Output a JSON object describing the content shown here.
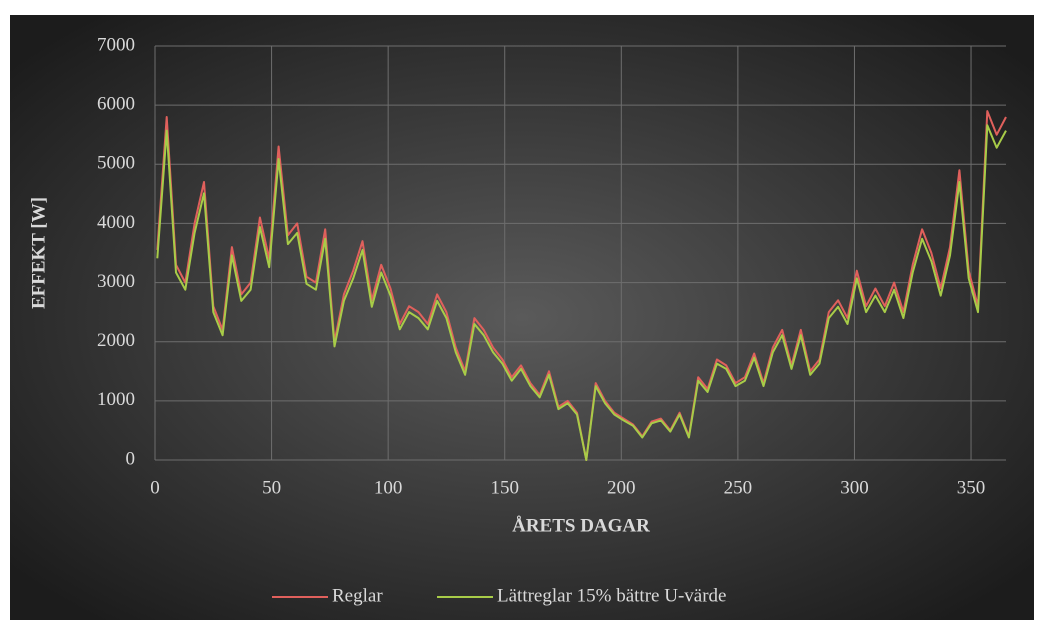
{
  "chart_data": {
    "type": "line",
    "y_label": "EFFEKT [W]",
    "x_label": "ÅRETS DAGAR",
    "x": [
      1,
      5,
      9,
      13,
      17,
      21,
      25,
      29,
      33,
      37,
      41,
      45,
      49,
      53,
      57,
      61,
      65,
      69,
      73,
      77,
      81,
      85,
      89,
      93,
      97,
      101,
      105,
      109,
      113,
      117,
      121,
      125,
      129,
      133,
      137,
      141,
      145,
      149,
      153,
      157,
      161,
      165,
      169,
      173,
      177,
      181,
      185,
      189,
      193,
      197,
      201,
      205,
      209,
      213,
      217,
      221,
      225,
      229,
      233,
      237,
      241,
      245,
      249,
      253,
      257,
      261,
      265,
      269,
      273,
      277,
      281,
      285,
      289,
      293,
      297,
      301,
      305,
      309,
      313,
      317,
      321,
      325,
      329,
      333,
      337,
      341,
      345,
      349,
      353,
      357,
      361,
      365
    ],
    "series": [
      {
        "name": "Reglar",
        "color": "#e0605c",
        "values": [
          3550,
          5800,
          3300,
          3000,
          4000,
          4700,
          2600,
          2200,
          3600,
          2800,
          3000,
          4100,
          3400,
          5300,
          3800,
          4000,
          3100,
          3000,
          3900,
          2000,
          2800,
          3200,
          3700,
          2700,
          3300,
          2900,
          2300,
          2600,
          2500,
          2300,
          2800,
          2500,
          1900,
          1500,
          2400,
          2200,
          1900,
          1700,
          1400,
          1600,
          1300,
          1100,
          1500,
          900,
          1000,
          800,
          0,
          1300,
          1000,
          800,
          700,
          600,
          400,
          650,
          700,
          500,
          800,
          400,
          1400,
          1200,
          1700,
          1600,
          1300,
          1400,
          1800,
          1300,
          1900,
          2200,
          1600,
          2200,
          1500,
          1700,
          2500,
          2700,
          2400,
          3200,
          2600,
          2900,
          2600,
          3000,
          2500,
          3300,
          3900,
          3500,
          2900,
          3600,
          4900,
          3200,
          2600,
          5900,
          5500,
          5800
        ]
      },
      {
        "name": "Lättreglar 15% bättre U-värde",
        "color": "#a8cc48",
        "values": [
          3410,
          5570,
          3170,
          2880,
          3840,
          4510,
          2500,
          2110,
          3460,
          2690,
          2880,
          3940,
          3260,
          5090,
          3650,
          3840,
          2980,
          2880,
          3740,
          1920,
          2690,
          3070,
          3550,
          2590,
          3170,
          2780,
          2210,
          2500,
          2400,
          2210,
          2690,
          2400,
          1820,
          1440,
          2300,
          2110,
          1820,
          1630,
          1340,
          1540,
          1250,
          1060,
          1440,
          860,
          960,
          770,
          0,
          1250,
          960,
          770,
          670,
          580,
          380,
          620,
          670,
          480,
          770,
          380,
          1340,
          1150,
          1630,
          1540,
          1250,
          1340,
          1730,
          1250,
          1820,
          2110,
          1540,
          2110,
          1440,
          1630,
          2400,
          2590,
          2300,
          3070,
          2500,
          2780,
          2500,
          2880,
          2400,
          3170,
          3740,
          3360,
          2780,
          3460,
          4700,
          3070,
          2500,
          5660,
          5280,
          5570
        ]
      }
    ],
    "xlim": [
      0,
      365
    ],
    "ylim": [
      0,
      7000
    ],
    "xticks": [
      0,
      50,
      100,
      150,
      200,
      250,
      300,
      350
    ],
    "yticks": [
      0,
      1000,
      2000,
      3000,
      4000,
      5000,
      6000,
      7000
    ],
    "grid": true,
    "legend": "bottom"
  }
}
